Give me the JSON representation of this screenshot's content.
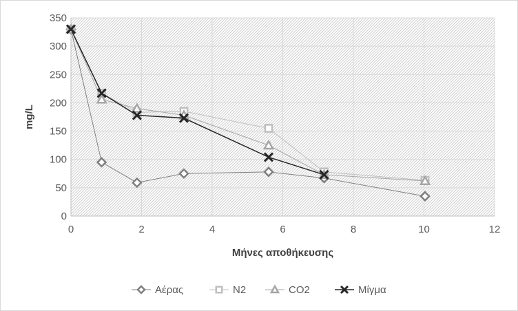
{
  "chart_data": {
    "type": "line",
    "title": "",
    "xlabel": "Μήνες αποθήκευσης",
    "ylabel": "mg/L",
    "xlim": [
      0,
      12
    ],
    "ylim": [
      0,
      350
    ],
    "xticks": [
      0,
      2,
      4,
      6,
      8,
      10,
      12
    ],
    "yticks": [
      0,
      50,
      100,
      150,
      200,
      250,
      300,
      350
    ],
    "grid": true,
    "legend_position": "bottom",
    "series": [
      {
        "name": "Αέρας",
        "marker": "diamond",
        "color": "#7f7f7f",
        "x": [
          0,
          0.87,
          1.87,
          3.2,
          5.6,
          7.17,
          10.03
        ],
        "y": [
          330,
          95,
          59,
          75,
          78,
          67,
          35
        ]
      },
      {
        "name": "N2",
        "marker": "square",
        "color": "#bfbfbf",
        "x": [
          0,
          0.87,
          1.87,
          3.2,
          5.6,
          7.17,
          10.03
        ],
        "y": [
          330,
          217,
          183,
          185,
          155,
          78,
          63
        ]
      },
      {
        "name": "CO2",
        "marker": "triangle",
        "color": "#a6a6a6",
        "x": [
          0,
          0.87,
          1.87,
          3.2,
          5.6,
          7.17,
          10.03
        ],
        "y": [
          330,
          206,
          190,
          178,
          125,
          73,
          62
        ]
      },
      {
        "name": "Μίγμα",
        "marker": "x",
        "color": "#262626",
        "x": [
          0,
          0.87,
          1.87,
          3.2,
          5.6,
          7.17
        ],
        "y": [
          330,
          217,
          178,
          173,
          104,
          73
        ]
      }
    ]
  }
}
